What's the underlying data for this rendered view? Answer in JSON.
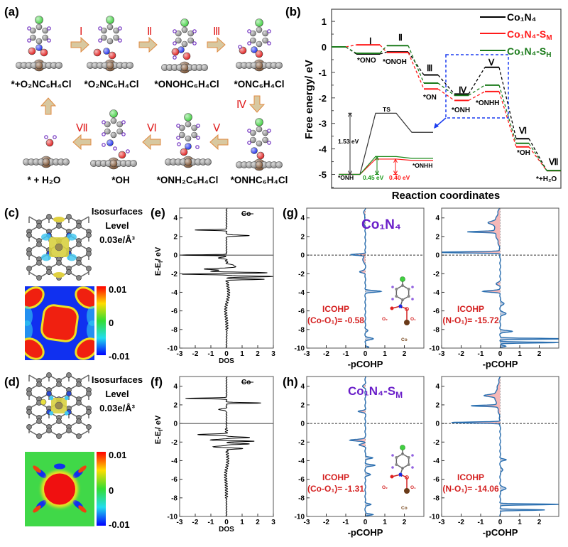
{
  "panels": {
    "a": "(a)",
    "b": "(b)",
    "c": "(c)",
    "d": "(d)",
    "e": "(e)",
    "f": "(f)",
    "g": "(g)",
    "h": "(h)"
  },
  "panel_a": {
    "steps": [
      "Ⅰ",
      "Ⅱ",
      "Ⅲ",
      "Ⅳ",
      "Ⅴ",
      "Ⅵ",
      "Ⅶ"
    ],
    "species": [
      "*+O₂NC₆H₄Cl",
      "*O₂NC₆H₄Cl",
      "*ONOHC₆H₄Cl",
      "*ONC₆H₄Cl",
      "*ONHC₆H₄Cl",
      "*ONH₂C₆H₄Cl",
      "*OH",
      "* + H₂O"
    ]
  },
  "chart_data": [
    {
      "id": "b",
      "type": "line",
      "title": "",
      "xlabel": "Reaction coordinates",
      "ylabel": "Free energy/ eV",
      "ylim": [
        -5.2,
        1.3
      ],
      "yticks": [
        "1",
        "0",
        "-1",
        "-2",
        "-3",
        "-4",
        "-5"
      ],
      "steps": [
        "Ⅰ",
        "Ⅱ",
        "Ⅲ",
        "Ⅳ",
        "Ⅴ",
        "Ⅵ",
        "Ⅶ"
      ],
      "intermediates": [
        "*ONO",
        "*ONOH",
        "*ON",
        "*ONH",
        "*ONHH",
        "*OH",
        "*+H₂O"
      ],
      "series": [
        {
          "name": "Co₁N₄-S",
          "sub": "",
          "display": "Co₁N₄",
          "color": "#000000",
          "values": [
            0,
            -0.28,
            -0.2,
            -1.1,
            -1.85,
            -0.8,
            -3.6,
            -4.85
          ]
        },
        {
          "name": "Co₁N₄-S",
          "sub": "M",
          "display": "Co₁N₄-S",
          "color": "#ff1a1a",
          "values": [
            0,
            0.08,
            -0.22,
            -1.65,
            -2.1,
            -1.75,
            -3.92,
            -4.85
          ]
        },
        {
          "name": "Co₁N₄-S",
          "sub": "H",
          "display": "Co₁N₄-S",
          "color": "#1a7a1a",
          "values": [
            0,
            -0.25,
            0.05,
            -1.42,
            -1.9,
            -1.5,
            -3.78,
            -4.85
          ]
        }
      ],
      "inset": {
        "ts_label": "TS",
        "start_label": "*ONH",
        "end_label": "*ONHH",
        "black": [
          -5,
          -2.6,
          -3.35
        ],
        "green": [
          -5,
          -4.3,
          -4.37
        ],
        "red": [
          -5,
          -4.4,
          -4.45
        ],
        "barrier_black": "1.53 eV",
        "barrier_green": "0.45 eV",
        "barrier_red": "0.40 eV"
      }
    },
    {
      "id": "e",
      "type": "line",
      "legend": "Co",
      "xlabel": "DOS",
      "ylabel": "E-E",
      "ylabel_sub": "f",
      "ylabel_unit": "/ eV",
      "xlim": [
        -3,
        3
      ],
      "ylim": [
        -10,
        5
      ],
      "xticks": [
        "-3",
        "-2",
        "-1",
        "0",
        "1",
        "2",
        "3"
      ],
      "yticks": [
        "4",
        "2",
        "0",
        "-2",
        "-4",
        "-6",
        "-8",
        "-10"
      ],
      "peaks": [
        [
          2.1,
          1.5,
          0.07
        ],
        [
          -1.9,
          2.7,
          0.08
        ],
        [
          -2.3,
          3,
          0.07
        ],
        [
          -2.6,
          2.4,
          0.06
        ],
        [
          -1.2,
          0.6,
          0.2
        ],
        [
          -4.5,
          0.45,
          1.3
        ],
        [
          -7.5,
          0.15,
          1
        ],
        [
          2.7,
          -2,
          0.06
        ],
        [
          0,
          -3,
          0.05
        ],
        [
          -0.3,
          -0.5,
          0.1
        ],
        [
          -1.5,
          -1.5,
          0.1
        ],
        [
          -2.05,
          -3,
          0.06
        ],
        [
          -1.75,
          -1,
          0.1
        ],
        [
          -4.8,
          -0.35,
          1.4
        ],
        [
          -7.5,
          -0.12,
          1
        ]
      ]
    },
    {
      "id": "f",
      "type": "line",
      "legend": "Co",
      "xlabel": "DOS",
      "ylabel": "E-E",
      "ylabel_sub": "f",
      "ylabel_unit": "/ eV",
      "xlim": [
        -3,
        3
      ],
      "ylim": [
        -10,
        5
      ],
      "xticks": [
        "-3",
        "-2",
        "-1",
        "0",
        "1",
        "2",
        "3"
      ],
      "yticks": [
        "4",
        "2",
        "0",
        "-2",
        "-4",
        "-6",
        "-8",
        "-10"
      ],
      "peaks": [
        [
          2.7,
          -2.6,
          0.06
        ],
        [
          2.2,
          2.2,
          0.06
        ],
        [
          1.5,
          -0.5,
          0.1
        ],
        [
          -1.2,
          -1.8,
          0.08
        ],
        [
          -1.8,
          -1.2,
          0.1
        ],
        [
          -2.5,
          -0.8,
          0.1
        ],
        [
          -1.5,
          1.5,
          0.08
        ],
        [
          -1.9,
          2.2,
          0.07
        ],
        [
          -2.2,
          1.5,
          0.07
        ],
        [
          -2.7,
          1,
          0.08
        ],
        [
          -4.3,
          0.45,
          1.2
        ],
        [
          -4.5,
          -0.4,
          1.3
        ],
        [
          -7.5,
          0.12,
          1
        ],
        [
          -7.5,
          -0.12,
          1
        ]
      ]
    },
    {
      "id": "g-left",
      "type": "area",
      "xlabel": "-pCOHP",
      "label": "Co₁N₄",
      "label_sub": "",
      "icohp_title": "ICOHP",
      "icohp_value": "(Co-O₁)=  -0.58",
      "xlim": [
        -3,
        3
      ],
      "ylim": [
        -10,
        5
      ],
      "xticks": [
        "-3",
        "-2",
        "-1",
        "0",
        "1",
        "2"
      ],
      "yticks": [
        "4",
        "2",
        "0",
        "-2",
        "-4",
        "-6",
        "-8",
        "-10"
      ],
      "peaks": [
        [
          0.05,
          -0.75,
          0.1
        ],
        [
          -1.8,
          -0.3,
          0.15
        ],
        [
          -0.5,
          -0.15,
          0.3
        ],
        [
          4.5,
          -0.08,
          0.3
        ],
        [
          3.5,
          -0.06,
          0.3
        ],
        [
          -3.9,
          0.8,
          0.12
        ],
        [
          -9,
          0.4,
          0.15
        ],
        [
          -8.1,
          0.12,
          0.15
        ],
        [
          -9.9,
          0.2,
          0.1
        ]
      ]
    },
    {
      "id": "g-right",
      "type": "area",
      "xlabel": "-pCOHP",
      "icohp_title": "ICOHP",
      "icohp_value": "(N-O₁)=  -15.72",
      "xlim": [
        -3,
        3
      ],
      "ylim": [
        -10,
        5
      ],
      "xticks": [
        "-3",
        "-2",
        "-1",
        "0",
        "1",
        "2"
      ],
      "yticks": [
        "4",
        "2",
        "0",
        "-2",
        "-4",
        "-6",
        "-8",
        "-10"
      ],
      "peaks": [
        [
          0.3,
          -3.5,
          0.08
        ],
        [
          2.5,
          -1.4,
          0.08
        ],
        [
          -3.9,
          -0.9,
          0.12
        ],
        [
          3.5,
          -0.35,
          0.2
        ],
        [
          3.0,
          -0.3,
          1.6
        ],
        [
          -3.1,
          -0.2,
          0.2
        ],
        [
          -9,
          3.5,
          0.07
        ],
        [
          -9.4,
          3,
          0.07
        ],
        [
          -8.2,
          0.6,
          0.12
        ],
        [
          -6.3,
          0.3,
          0.2
        ],
        [
          -5.2,
          0.2,
          0.2
        ],
        [
          -9.8,
          0.3,
          0.1
        ]
      ]
    },
    {
      "id": "h-left",
      "type": "area",
      "xlabel": "-pCOHP",
      "label": "Co₁N₄-S",
      "label_sub": "M",
      "icohp_title": "ICOHP",
      "icohp_value": "(Co-O₁)= -1.31",
      "xlim": [
        -3,
        3
      ],
      "ylim": [
        -10,
        5
      ],
      "xticks": [
        "-3",
        "-2",
        "-1",
        "0",
        "1",
        "2"
      ],
      "yticks": [
        "4",
        "2",
        "0",
        "-2",
        "-4",
        "-6",
        "-8",
        "-10"
      ],
      "peaks": [
        [
          4,
          -0.12,
          0.2
        ],
        [
          1.3,
          -0.35,
          0.12
        ],
        [
          -1.8,
          -0.8,
          0.12
        ],
        [
          -2.3,
          -0.3,
          0.15
        ],
        [
          -3.7,
          0.4,
          0.12
        ],
        [
          -4.5,
          0.5,
          0.12
        ],
        [
          -5.5,
          0.25,
          0.15
        ],
        [
          -8.7,
          0.3,
          0.12
        ],
        [
          -9.8,
          0.4,
          0.1
        ]
      ]
    },
    {
      "id": "h-right",
      "type": "area",
      "xlabel": "-pCOHP",
      "icohp_title": "ICOHP",
      "icohp_value": "(N-O₁)= -14.06",
      "xlim": [
        -3,
        3
      ],
      "ylim": [
        -10,
        5
      ],
      "xticks": [
        "-3",
        "-2",
        "-1",
        "0",
        "1",
        "2"
      ],
      "yticks": [
        "4",
        "2",
        "0",
        "-2",
        "-4",
        "-6",
        "-8",
        "-10"
      ],
      "peaks": [
        [
          0.1,
          -2.5,
          0.08
        ],
        [
          1.9,
          -1.3,
          0.08
        ],
        [
          3,
          -0.6,
          0.15
        ],
        [
          2.8,
          -0.25,
          1.5
        ],
        [
          -3.9,
          0.3,
          0.12
        ],
        [
          -7,
          0.3,
          0.2
        ],
        [
          -8.7,
          3,
          0.07
        ],
        [
          -9.3,
          2.3,
          0.07
        ],
        [
          -5,
          0.15,
          0.2
        ]
      ]
    }
  ],
  "panel_c": {
    "iso_title": "Isosurfaces",
    "iso_level": "Level",
    "iso_value": "0.03e/Å³",
    "cb_max": "0.01",
    "cb_mid": "0",
    "cb_min": "-0.01"
  },
  "panel_d": {
    "iso_title": "Isosurfaces",
    "iso_level": "Level",
    "iso_value": "0.03e/Å³",
    "cb_max": "0.01",
    "cb_mid": "0",
    "cb_min": "-0.01"
  },
  "inset_atoms": {
    "o2": "O₂",
    "n": "N",
    "o1": "O₁",
    "co": "Co"
  },
  "colors": {
    "red": "#e02020",
    "purple": "#6a1fc9",
    "blue_curve": "#2a6fb0",
    "red_fill": "#f6b8b8",
    "blue_fill": "#b9c9e0",
    "inset_box": "#1a3cf0"
  }
}
